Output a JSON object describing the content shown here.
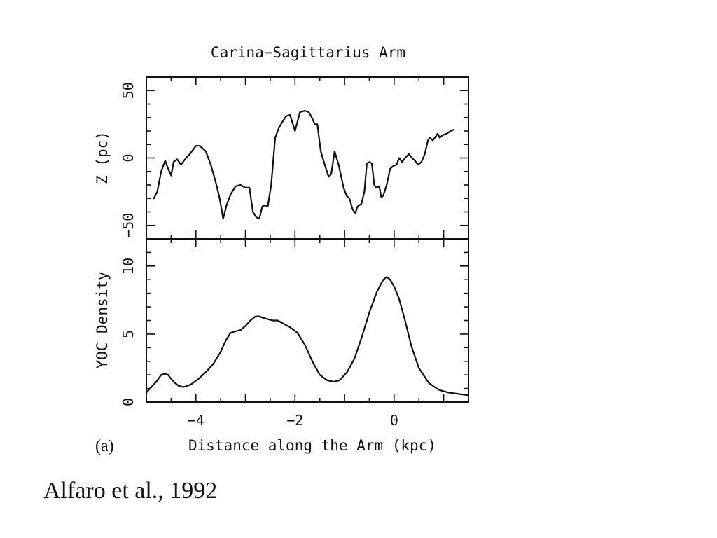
{
  "figure": {
    "title": "Carina−Sagittarius Arm",
    "panel_label": "(a)",
    "xlabel": "Distance along the Arm (kpc)",
    "citation": "Alfaro et al., 1992"
  },
  "chart_data": [
    {
      "type": "line",
      "title": "Carina−Sagittarius Arm",
      "xlabel": "",
      "ylabel": "Z (pc)",
      "xlim": [
        -5.0,
        1.5
      ],
      "ylim": [
        -60,
        60
      ],
      "yticks": [
        -50,
        0,
        50
      ],
      "ytick_labels": [
        "−50",
        "0",
        "50"
      ],
      "series": [
        {
          "x": [
            -4.85,
            -4.78,
            -4.7,
            -4.62,
            -4.57,
            -4.5,
            -4.45,
            -4.38,
            -4.3,
            -4.2,
            -4.12,
            -4.0,
            -3.92,
            -3.8,
            -3.7,
            -3.6,
            -3.52,
            -3.45,
            -3.38,
            -3.3,
            -3.2,
            -3.1,
            -3.0,
            -2.92,
            -2.85,
            -2.78,
            -2.72,
            -2.66,
            -2.6,
            -2.55,
            -2.48,
            -2.4,
            -2.33,
            -2.25,
            -2.18,
            -2.1,
            -2.0,
            -1.9,
            -1.8,
            -1.72,
            -1.66,
            -1.6,
            -1.55,
            -1.48,
            -1.4,
            -1.32,
            -1.27,
            -1.2,
            -1.12,
            -1.02,
            -0.96,
            -0.9,
            -0.84,
            -0.78,
            -0.74,
            -0.7,
            -0.66,
            -0.6,
            -0.55,
            -0.5,
            -0.45,
            -0.4,
            -0.36,
            -0.3,
            -0.26,
            -0.22,
            -0.15,
            -0.08,
            -0.02,
            0.05,
            0.1,
            0.16,
            0.22,
            0.3,
            0.36,
            0.42,
            0.48,
            0.55,
            0.62,
            0.68,
            0.72,
            0.78,
            0.84,
            0.88,
            0.92,
            0.98,
            1.06,
            1.14,
            1.2
          ],
          "values": [
            -30,
            -25,
            -10,
            -2,
            -7,
            -13,
            -3,
            -1,
            -5,
            0,
            3,
            9,
            9,
            5,
            -5,
            -18,
            -30,
            -45,
            -35,
            -27,
            -21,
            -20,
            -22,
            -22,
            -40,
            -44,
            -45,
            -36,
            -35,
            -36,
            -20,
            15,
            22,
            27,
            31,
            32,
            20,
            34,
            35,
            34,
            30,
            25,
            25,
            5,
            -5,
            -14,
            -12,
            5,
            -5,
            -22,
            -28,
            -30,
            -38,
            -41,
            -36,
            -35,
            -34,
            -25,
            -4,
            -3,
            -4,
            -20,
            -22,
            -21,
            -29,
            -28,
            -20,
            -8,
            -6,
            -5,
            0,
            -3,
            0,
            3,
            0,
            -2,
            -5,
            -3,
            3,
            13,
            15,
            13,
            16,
            18,
            15,
            17,
            18,
            20,
            21
          ]
        }
      ]
    },
    {
      "type": "line",
      "xlabel": "Distance along the Arm (kpc)",
      "ylabel": "YOC Density",
      "xlim": [
        -5.0,
        1.5
      ],
      "ylim": [
        0,
        12
      ],
      "yticks": [
        0,
        5,
        10
      ],
      "ytick_labels": [
        "0",
        "5",
        "10"
      ],
      "xticks": [
        -4,
        -2,
        0
      ],
      "xtick_labels": [
        "−4",
        "−2",
        "0"
      ],
      "series": [
        {
          "x": [
            -5.0,
            -4.9,
            -4.8,
            -4.7,
            -4.62,
            -4.56,
            -4.5,
            -4.42,
            -4.35,
            -4.25,
            -4.1,
            -3.95,
            -3.8,
            -3.65,
            -3.5,
            -3.4,
            -3.3,
            -3.2,
            -3.1,
            -3.0,
            -2.9,
            -2.8,
            -2.72,
            -2.65,
            -2.55,
            -2.45,
            -2.35,
            -2.25,
            -2.1,
            -1.95,
            -1.8,
            -1.65,
            -1.5,
            -1.35,
            -1.22,
            -1.1,
            -0.95,
            -0.8,
            -0.65,
            -0.5,
            -0.35,
            -0.22,
            -0.15,
            -0.08,
            0.0,
            0.1,
            0.22,
            0.35,
            0.5,
            0.7,
            0.9,
            1.1,
            1.3,
            1.5
          ],
          "values": [
            0.7,
            1.1,
            1.5,
            2.0,
            2.1,
            2.0,
            1.7,
            1.4,
            1.2,
            1.1,
            1.3,
            1.7,
            2.2,
            2.8,
            3.7,
            4.5,
            5.1,
            5.2,
            5.3,
            5.6,
            6.0,
            6.3,
            6.3,
            6.2,
            6.1,
            6.0,
            6.0,
            5.8,
            5.5,
            5.1,
            4.2,
            3.0,
            2.0,
            1.6,
            1.5,
            1.6,
            2.2,
            3.2,
            4.8,
            6.6,
            8.1,
            9.0,
            9.2,
            9.0,
            8.5,
            7.6,
            6.0,
            4.1,
            2.5,
            1.4,
            0.9,
            0.7,
            0.6,
            0.5
          ]
        }
      ]
    }
  ]
}
